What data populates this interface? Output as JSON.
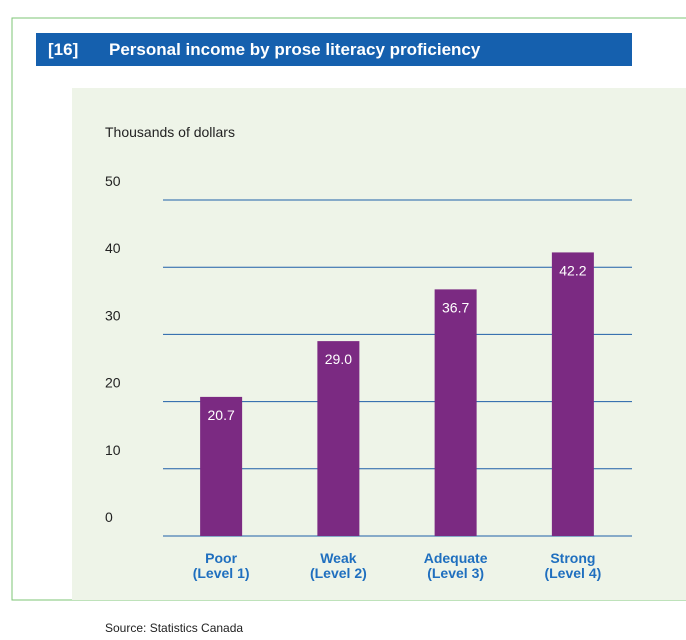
{
  "chart_data": {
    "type": "bar",
    "label_number": "[16]",
    "title": "Personal income by prose literacy proficiency",
    "y_label": "Thousands of dollars",
    "categories": [
      "Poor\n(Level 1)",
      "Weak\n(Level 2)",
      "Adequate\n(Level 3)",
      "Strong\n(Level 4)"
    ],
    "values": [
      20.7,
      29.0,
      36.7,
      42.2
    ],
    "value_labels": [
      "20.7",
      "29.0",
      "36.7",
      "42.2"
    ],
    "color": "#7b2a82",
    "ylim": [
      0,
      50
    ],
    "yticks": [
      0,
      10,
      20,
      30,
      40,
      50
    ],
    "grid": true,
    "source": "Source: Statistics Canada"
  }
}
